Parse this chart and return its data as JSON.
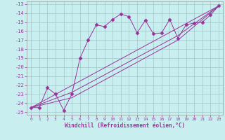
{
  "xlabel": "Windchill (Refroidissement éolien,°C)",
  "bg_color": "#c8eef0",
  "grid_color": "#a0c8c8",
  "line_color": "#993399",
  "spine_color": "#999999",
  "xlim": [
    -0.5,
    23.5
  ],
  "ylim": [
    -25.3,
    -12.7
  ],
  "xticks": [
    0,
    1,
    2,
    3,
    4,
    5,
    6,
    7,
    8,
    9,
    10,
    11,
    12,
    13,
    14,
    15,
    16,
    17,
    18,
    19,
    20,
    21,
    22,
    23
  ],
  "yticks": [
    -25,
    -24,
    -23,
    -22,
    -21,
    -20,
    -19,
    -18,
    -17,
    -16,
    -15,
    -14,
    -13
  ],
  "main_x": [
    0,
    1,
    2,
    3,
    4,
    5,
    6,
    7,
    8,
    9,
    10,
    11,
    12,
    13,
    14,
    15,
    16,
    17,
    18,
    19,
    20,
    21,
    22,
    23
  ],
  "main_y": [
    -24.5,
    -24.5,
    -22.3,
    -23.0,
    -24.8,
    -23.0,
    -19.0,
    -17.0,
    -15.3,
    -15.5,
    -14.7,
    -14.1,
    -14.4,
    -16.2,
    -14.8,
    -16.3,
    -16.2,
    -14.7,
    -16.8,
    -15.3,
    -15.1,
    -15.0,
    -14.2,
    -13.2
  ],
  "line1_x": [
    0,
    23
  ],
  "line1_y": [
    -24.5,
    -13.2
  ],
  "line2_x": [
    0,
    5,
    18,
    23
  ],
  "line2_y": [
    -24.5,
    -23.4,
    -17.0,
    -13.2
  ],
  "line3_x": [
    0,
    5,
    18,
    23
  ],
  "line3_y": [
    -24.5,
    -22.8,
    -16.5,
    -13.2
  ]
}
